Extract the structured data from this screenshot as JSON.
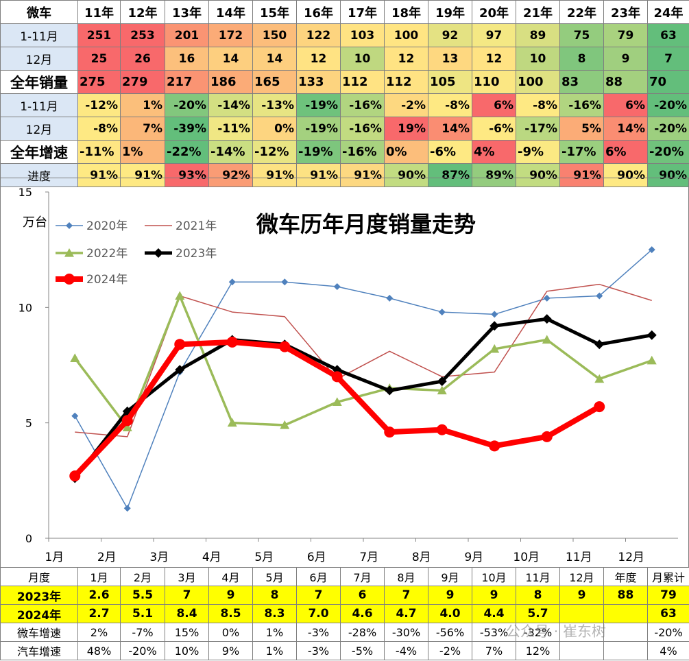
{
  "top_table": {
    "header": [
      "微车",
      "11年",
      "12年",
      "13年",
      "14年",
      "15年",
      "16年",
      "17年",
      "18年",
      "19年",
      "20年",
      "21年",
      "22年",
      "23年",
      "24年"
    ],
    "rows": [
      {
        "label": "1-11月",
        "big": false,
        "cells": [
          {
            "v": "251",
            "c": "#f8696b"
          },
          {
            "v": "253",
            "c": "#f8696b"
          },
          {
            "v": "201",
            "c": "#fa9473"
          },
          {
            "v": "172",
            "c": "#fbab77"
          },
          {
            "v": "150",
            "c": "#fcbd7b"
          },
          {
            "v": "122",
            "c": "#fdd47f"
          },
          {
            "v": "103",
            "c": "#ffe383"
          },
          {
            "v": "100",
            "c": "#ffe583"
          },
          {
            "v": "92",
            "c": "#e4e283"
          },
          {
            "v": "97",
            "c": "#f4e884"
          },
          {
            "v": "89",
            "c": "#d8df82"
          },
          {
            "v": "75",
            "c": "#94cc7e"
          },
          {
            "v": "79",
            "c": "#a9d27f"
          },
          {
            "v": "63",
            "c": "#63be7b"
          }
        ]
      },
      {
        "label": "12月",
        "big": false,
        "cells": [
          {
            "v": "25",
            "c": "#f8696b"
          },
          {
            "v": "26",
            "c": "#f8696b"
          },
          {
            "v": "16",
            "c": "#fcc07c"
          },
          {
            "v": "14",
            "c": "#fdcf7f"
          },
          {
            "v": "14",
            "c": "#fdcf7f"
          },
          {
            "v": "12",
            "c": "#ffe383"
          },
          {
            "v": "10",
            "c": "#bfd880"
          },
          {
            "v": "12",
            "c": "#ffe383"
          },
          {
            "v": "13",
            "c": "#fed880"
          },
          {
            "v": "12",
            "c": "#ffe383"
          },
          {
            "v": "10",
            "c": "#bfd880"
          },
          {
            "v": "8",
            "c": "#80c67d"
          },
          {
            "v": "9",
            "c": "#a0cf7f"
          },
          {
            "v": "7",
            "c": "#63be7b"
          }
        ]
      },
      {
        "label": "全年销量",
        "big": true,
        "cells": [
          {
            "v": "275",
            "c": "#f8696b"
          },
          {
            "v": "279",
            "c": "#f8696b"
          },
          {
            "v": "217",
            "c": "#fa9473"
          },
          {
            "v": "186",
            "c": "#fbab77"
          },
          {
            "v": "165",
            "c": "#fcbd7b"
          },
          {
            "v": "133",
            "c": "#fdd47f"
          },
          {
            "v": "112",
            "c": "#ffe383"
          },
          {
            "v": "112",
            "c": "#ffe383"
          },
          {
            "v": "105",
            "c": "#eee583"
          },
          {
            "v": "110",
            "c": "#fbe783"
          },
          {
            "v": "100",
            "c": "#dfe182"
          },
          {
            "v": "83",
            "c": "#8dca7e"
          },
          {
            "v": "88",
            "c": "#a4d07f"
          },
          {
            "v": "70",
            "c": "#63be7b"
          }
        ]
      },
      {
        "label": "1-11月",
        "big": false,
        "cells": [
          {
            "v": "-12%",
            "c": "#fde883"
          },
          {
            "v": "1%",
            "c": "#fbbf7b"
          },
          {
            "v": "-20%",
            "c": "#82c77d"
          },
          {
            "v": "-14%",
            "c": "#d3df82"
          },
          {
            "v": "-13%",
            "c": "#e7e483"
          },
          {
            "v": "-19%",
            "c": "#6ec27c"
          },
          {
            "v": "-16%",
            "c": "#b1d580"
          },
          {
            "v": "-2%",
            "c": "#fdd880"
          },
          {
            "v": "-8%",
            "c": "#fee983"
          },
          {
            "v": "6%",
            "c": "#f8696b"
          },
          {
            "v": "-8%",
            "c": "#fee983"
          },
          {
            "v": "-16%",
            "c": "#b1d580"
          },
          {
            "v": "6%",
            "c": "#f8696b"
          },
          {
            "v": "-20%",
            "c": "#63be7b"
          }
        ]
      },
      {
        "label": "12月",
        "big": false,
        "cells": [
          {
            "v": "-8%",
            "c": "#fee983"
          },
          {
            "v": "7%",
            "c": "#fbb779"
          },
          {
            "v": "-39%",
            "c": "#63be7b"
          },
          {
            "v": "-11%",
            "c": "#f0e784"
          },
          {
            "v": "0%",
            "c": "#fdd580"
          },
          {
            "v": "-19%",
            "c": "#a4d17f"
          },
          {
            "v": "-16%",
            "c": "#c2db81"
          },
          {
            "v": "19%",
            "c": "#f8696b"
          },
          {
            "v": "14%",
            "c": "#fa8d72"
          },
          {
            "v": "-6%",
            "c": "#fee983"
          },
          {
            "v": "-17%",
            "c": "#bad881"
          },
          {
            "v": "5%",
            "c": "#fbac77"
          },
          {
            "v": "14%",
            "c": "#fa8d72"
          },
          {
            "v": "-20%",
            "c": "#9dcf7f"
          }
        ]
      },
      {
        "label": "全年增速",
        "big": true,
        "cells": [
          {
            "v": "-11%",
            "c": "#fee683"
          },
          {
            "v": "1%",
            "c": "#fbb579"
          },
          {
            "v": "-22%",
            "c": "#63be7b"
          },
          {
            "v": "-14%",
            "c": "#cade82"
          },
          {
            "v": "-12%",
            "c": "#e8e483"
          },
          {
            "v": "-19%",
            "c": "#7dc67d"
          },
          {
            "v": "-16%",
            "c": "#a8d27f"
          },
          {
            "v": "0%",
            "c": "#fcbe7b"
          },
          {
            "v": "-6%",
            "c": "#fee983"
          },
          {
            "v": "4%",
            "c": "#f8696b"
          },
          {
            "v": "-9%",
            "c": "#fbe983"
          },
          {
            "v": "-17%",
            "c": "#9bcf7f"
          },
          {
            "v": "6%",
            "c": "#f8696b"
          },
          {
            "v": "-20%",
            "c": "#70c27c"
          }
        ]
      },
      {
        "label": "进度",
        "big": false,
        "cells": [
          {
            "v": "91%",
            "c": "#fee983"
          },
          {
            "v": "91%",
            "c": "#fee983"
          },
          {
            "v": "93%",
            "c": "#f8696b"
          },
          {
            "v": "92%",
            "c": "#fa9c75"
          },
          {
            "v": "91%",
            "c": "#fde283"
          },
          {
            "v": "91%",
            "c": "#fde283"
          },
          {
            "v": "91%",
            "c": "#fdd881"
          },
          {
            "v": "90%",
            "c": "#c2dc81"
          },
          {
            "v": "87%",
            "c": "#63be7b"
          },
          {
            "v": "89%",
            "c": "#94cc7e"
          },
          {
            "v": "90%",
            "c": "#c2dc81"
          },
          {
            "v": "91%",
            "c": "#f98170"
          },
          {
            "v": "90%",
            "c": "#fee983"
          },
          {
            "v": "90%",
            "c": "#63be7b"
          }
        ]
      }
    ]
  },
  "chart_data": {
    "type": "line",
    "title": "微车历年月度销量走势",
    "ylabel": "万台",
    "ylim": [
      0,
      15
    ],
    "yticks": [
      0,
      5,
      10,
      15
    ],
    "categories": [
      "1月",
      "2月",
      "3月",
      "4月",
      "5月",
      "6月",
      "7月",
      "8月",
      "9月",
      "10月",
      "11月",
      "12月"
    ],
    "grid": false,
    "legend_position": "top-left",
    "series": [
      {
        "name": "2020年",
        "color": "#4f81bd",
        "values": [
          5.3,
          1.3,
          7.2,
          11.1,
          11.1,
          10.9,
          10.4,
          9.8,
          9.7,
          10.4,
          10.5,
          12.5
        ]
      },
      {
        "name": "2021年",
        "color": "#c0504d",
        "values": [
          4.6,
          4.4,
          10.5,
          9.8,
          9.6,
          6.9,
          8.1,
          7.0,
          7.2,
          10.7,
          11.0,
          10.3
        ]
      },
      {
        "name": "2022年",
        "color": "#9bbb59",
        "values": [
          7.8,
          4.8,
          10.5,
          5.0,
          4.9,
          5.9,
          6.5,
          6.4,
          8.2,
          8.6,
          6.9,
          7.7
        ]
      },
      {
        "name": "2023年",
        "color": "#000000",
        "values": [
          2.6,
          5.5,
          7.3,
          8.6,
          8.4,
          7.3,
          6.4,
          6.8,
          9.2,
          9.5,
          8.4,
          8.8
        ]
      },
      {
        "name": "2024年",
        "color": "#ff0000",
        "values": [
          2.7,
          5.1,
          8.4,
          8.5,
          8.3,
          7.0,
          4.6,
          4.7,
          4.0,
          4.4,
          5.7,
          null
        ]
      }
    ]
  },
  "bottom_table": {
    "header": [
      "月度",
      "1月",
      "2月",
      "3月",
      "4月",
      "5月",
      "6月",
      "7月",
      "8月",
      "9月",
      "10月",
      "11月",
      "12月",
      "年度",
      "月累计"
    ],
    "rows": [
      {
        "label": "2023年",
        "style": "yellow",
        "cells": [
          "2.6",
          "5.5",
          "7",
          "9",
          "8",
          "7",
          "6",
          "7",
          "9",
          "9",
          "8",
          "9",
          "88",
          "79"
        ]
      },
      {
        "label": "2024年",
        "style": "yellow",
        "cells": [
          "2.7",
          "5.1",
          "8.4",
          "8.5",
          "8.3",
          "7.0",
          "4.6",
          "4.7",
          "4.0",
          "4.4",
          "5.7",
          "",
          "",
          "63"
        ]
      },
      {
        "label": "微车增速",
        "style": "growth",
        "cells": [
          "2%",
          "-7%",
          "15%",
          "0%",
          "1%",
          "-3%",
          "-28%",
          "-30%",
          "-56%",
          "-53%",
          "-32%",
          "",
          "",
          "-20%"
        ]
      },
      {
        "label": "汽车增速",
        "style": "growth",
        "cells": [
          "48%",
          "-20%",
          "10%",
          "9%",
          "1%",
          "-3%",
          "-5%",
          "-4%",
          "-2%",
          "7%",
          "12%",
          "",
          "",
          "4%"
        ]
      }
    ]
  },
  "watermark": "公众号 · 崔东树"
}
